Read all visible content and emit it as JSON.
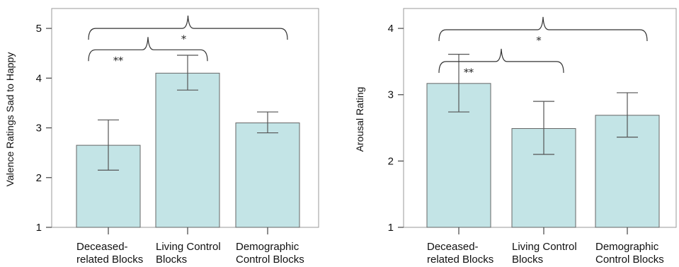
{
  "chart_data": [
    {
      "type": "bar",
      "categories": [
        [
          "Deceased-",
          "related Blocks"
        ],
        [
          "Living Control",
          "Blocks"
        ],
        [
          "Demographic",
          "Control Blocks"
        ]
      ],
      "values": [
        2.65,
        4.1,
        3.1
      ],
      "error_low": [
        2.15,
        3.76,
        2.9
      ],
      "error_high": [
        3.16,
        4.46,
        3.32
      ],
      "ylabel": "Valence Ratings Sad to Happy",
      "ylim": [
        1,
        5.4
      ],
      "yticks": [
        1,
        2,
        3,
        4,
        5
      ],
      "significance": [
        {
          "from": 0,
          "to": 1,
          "label": "**",
          "level": 4.57
        },
        {
          "from": 0,
          "to": 2,
          "label": "*",
          "level": 5.0
        }
      ],
      "bar_color": "#c3e4e6",
      "bar_edge_color": "#666666",
      "grid": false
    },
    {
      "type": "bar",
      "categories": [
        [
          "Deceased-",
          "related Blocks"
        ],
        [
          "Living Control",
          "Blocks"
        ],
        [
          "Demographic",
          "Control Blocks"
        ]
      ],
      "values": [
        3.17,
        2.49,
        2.69
      ],
      "error_low": [
        2.74,
        2.1,
        2.36
      ],
      "error_high": [
        3.61,
        2.9,
        3.03
      ],
      "ylabel": "Arousal Rating",
      "ylim": [
        1,
        4.3
      ],
      "yticks": [
        1,
        2,
        3,
        4
      ],
      "significance": [
        {
          "from": 0,
          "to": 1,
          "label": "**",
          "level": 3.5
        },
        {
          "from": 0,
          "to": 2,
          "label": "*",
          "level": 3.98
        }
      ],
      "bar_color": "#c3e4e6",
      "bar_edge_color": "#666666",
      "grid": false
    }
  ]
}
